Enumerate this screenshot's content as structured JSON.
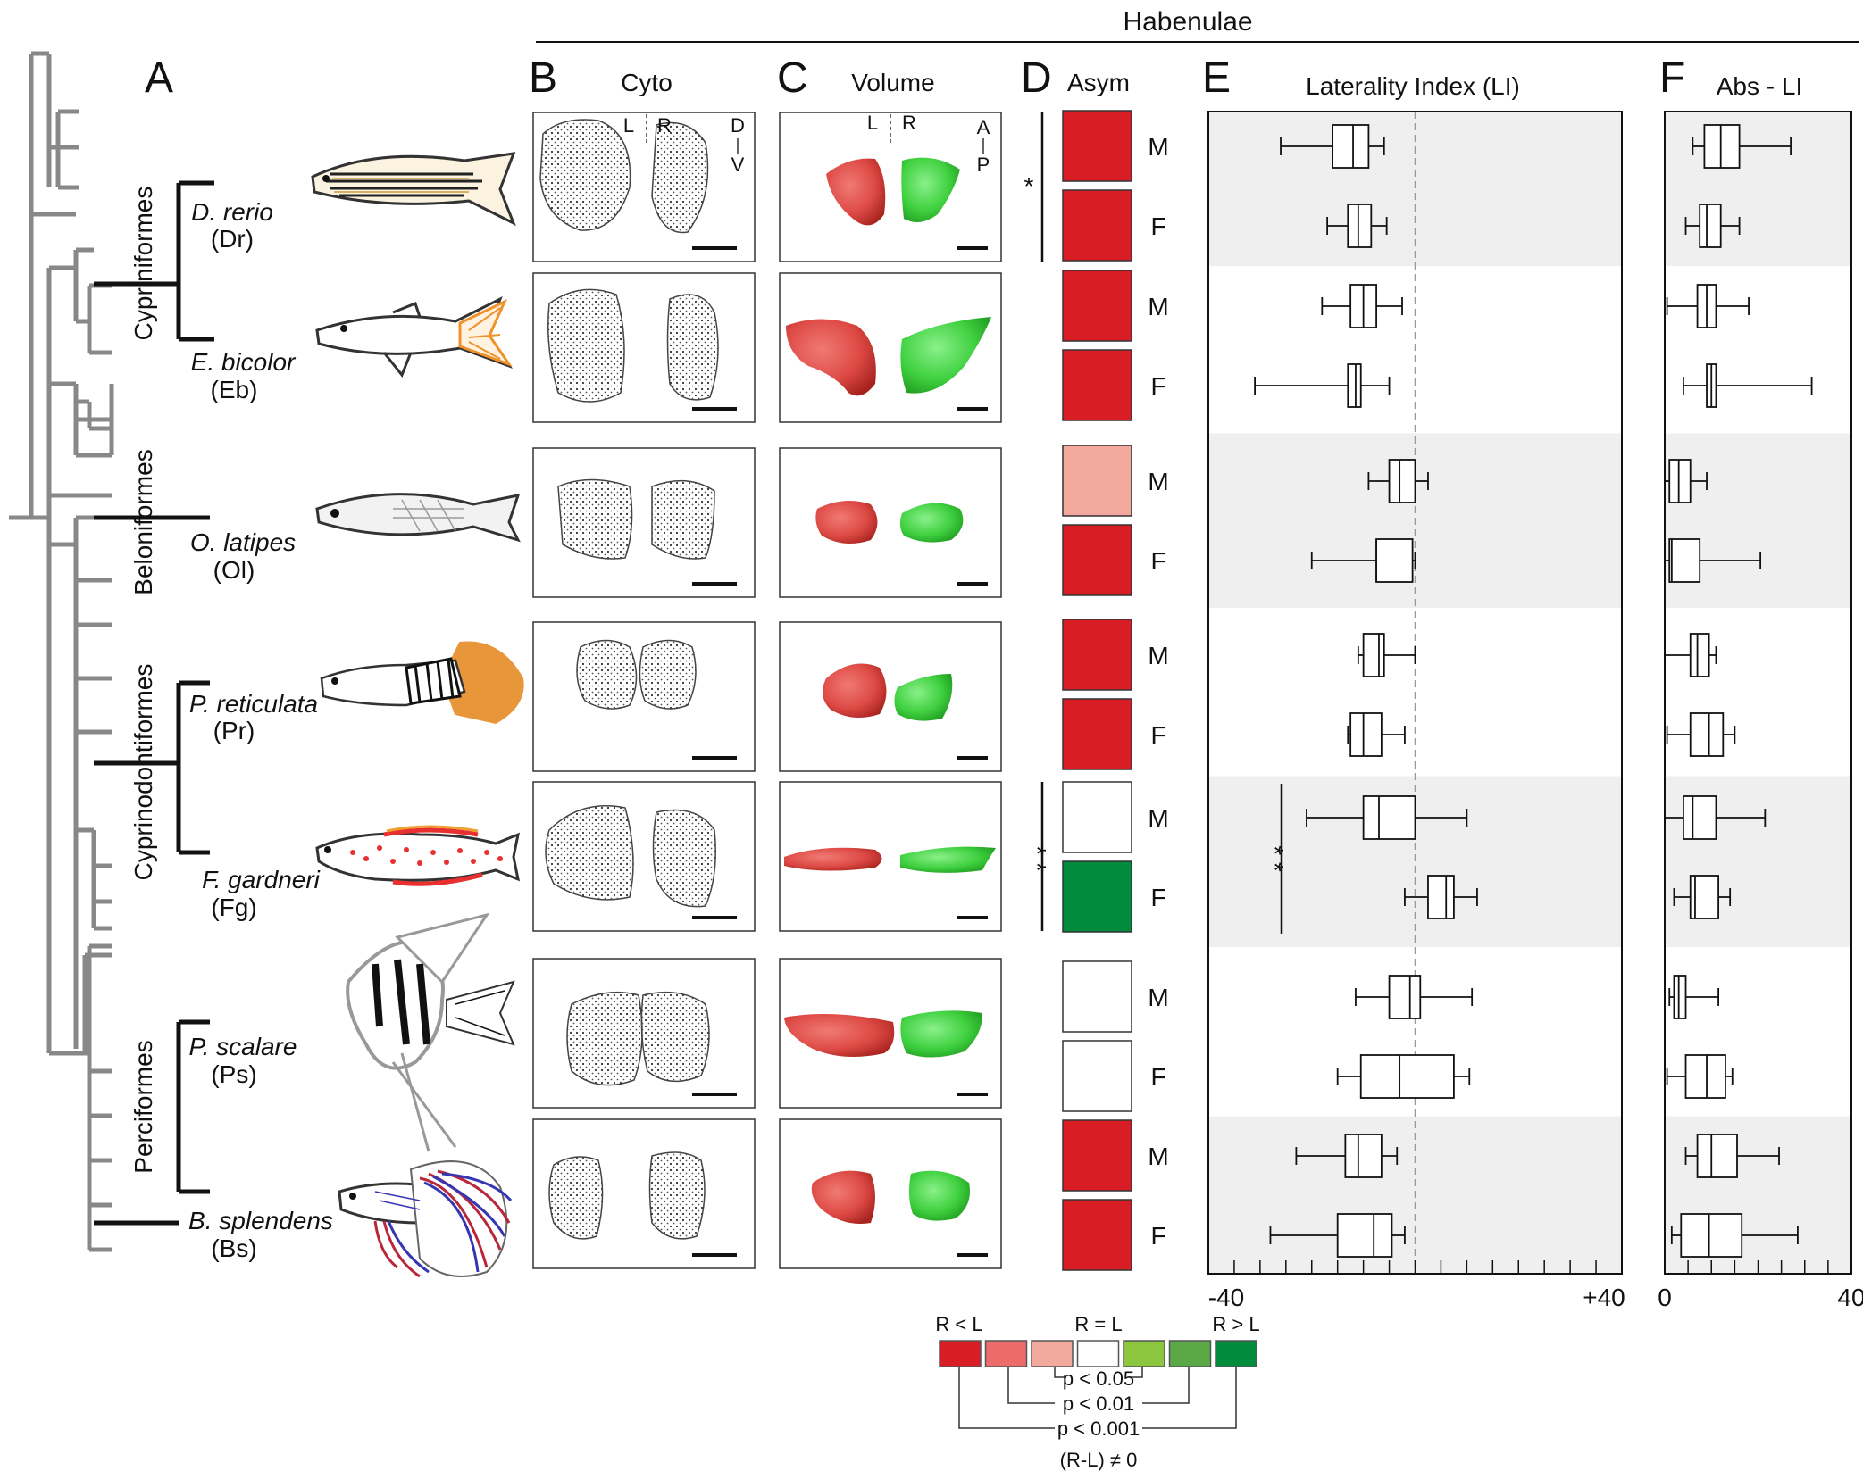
{
  "figure": {
    "header": "Habenulae",
    "panel_letters": [
      "A",
      "B",
      "C",
      "D",
      "E",
      "F"
    ],
    "panel_titles": {
      "B": "Cyto",
      "C": "Volume",
      "D": "Asym",
      "E": "Laterality Index (LI)",
      "F": "Abs - LI"
    },
    "orientation": {
      "left": "L",
      "right": "R",
      "dorsal": "D",
      "ventral": "V",
      "anterior": "A",
      "posterior": "P"
    },
    "orders": [
      "Cypriniformes",
      "Beloniformes",
      "Cyprinodontiformes",
      "Perciformes"
    ],
    "species": [
      {
        "name": "D. rerio",
        "abbr": "(Dr)",
        "asym": [
          "#d81e24",
          "#d81e24"
        ]
      },
      {
        "name": "E. bicolor",
        "abbr": "(Eb)",
        "asym": [
          "#d81e24",
          "#d81e24"
        ]
      },
      {
        "name": "O. latipes",
        "abbr": "(Ol)",
        "asym": [
          "#f4a99e",
          "#d81e24"
        ]
      },
      {
        "name": "P. reticulata",
        "abbr": "(Pr)",
        "asym": [
          "#d81e24",
          "#d81e24"
        ]
      },
      {
        "name": "F. gardneri",
        "abbr": "(Fg)",
        "asym": [
          "#ffffff",
          "#008c3c"
        ]
      },
      {
        "name": "P. scalare",
        "abbr": "(Ps)",
        "asym": [
          "#ffffff",
          "#ffffff"
        ]
      },
      {
        "name": "B. splendens",
        "abbr": "(Bs)",
        "asym": [
          "#d81e24",
          "#d81e24"
        ]
      }
    ],
    "sexes": [
      "M",
      "F"
    ],
    "significance_marks": {
      "asym_dr": "*",
      "asym_fg": "* *",
      "li_fg": "* *"
    },
    "legend": {
      "labels": [
        "R < L",
        "R = L",
        "R > L"
      ],
      "colors": [
        "#d81e24",
        "#ee6b6b",
        "#f4a99e",
        "#ffffff",
        "#8cc63f",
        "#5aa846",
        "#008c3c"
      ],
      "thresholds": [
        "p < 0.05",
        "p < 0.01",
        "p < 0.001"
      ],
      "condition": "(R-L) ≠ 0"
    }
  },
  "chart_data": [
    {
      "type": "box",
      "title": "Laterality Index (LI)",
      "xlim": [
        -40,
        40
      ],
      "x_tick_labels": [
        "-40",
        "+40"
      ],
      "reference_line": 0,
      "groups": [
        "Dr M",
        "Dr F",
        "Eb M",
        "Eb F",
        "Ol M",
        "Ol F",
        "Pr M",
        "Pr F",
        "Fg M",
        "Fg F",
        "Ps M",
        "Ps F",
        "Bs M",
        "Bs F"
      ],
      "boxes": [
        {
          "min": -26,
          "q1": -16,
          "median": -12,
          "q3": -9,
          "max": -6
        },
        {
          "min": -17,
          "q1": -13,
          "median": -11,
          "q3": -8.5,
          "max": -5.5
        },
        {
          "min": -18,
          "q1": -12.5,
          "median": -10,
          "q3": -7.5,
          "max": -2.5
        },
        {
          "min": -31,
          "q1": -13,
          "median": -11.5,
          "q3": -10.5,
          "max": -5
        },
        {
          "min": -9,
          "q1": -5,
          "median": -3,
          "q3": 0,
          "max": 2.5
        },
        {
          "min": -20,
          "q1": -7.5,
          "median": -7.5,
          "q3": -0.5,
          "max": 0
        },
        {
          "min": -11,
          "q1": -10,
          "median": -7,
          "q3": -6,
          "max": 0
        },
        {
          "min": -13,
          "q1": -12.5,
          "median": -10,
          "q3": -6.5,
          "max": -2
        },
        {
          "min": -21,
          "q1": -10,
          "median": -7,
          "q3": 0,
          "max": 10
        },
        {
          "min": -2,
          "q1": 2.5,
          "median": 6,
          "q3": 7.5,
          "max": 12
        },
        {
          "min": -11.5,
          "q1": -5,
          "median": -1,
          "q3": 1,
          "max": 11
        },
        {
          "min": -15,
          "q1": -10.5,
          "median": -3,
          "q3": 7.5,
          "max": 10.5
        },
        {
          "min": -23,
          "q1": -13.5,
          "median": -11,
          "q3": -6.5,
          "max": -3.5
        },
        {
          "min": -28,
          "q1": -15,
          "median": -8,
          "q3": -4.5,
          "max": -2
        }
      ]
    },
    {
      "type": "box",
      "title": "Abs - LI",
      "xlim": [
        0,
        40
      ],
      "x_tick_labels": [
        "0",
        "40"
      ],
      "groups": [
        "Dr M",
        "Dr F",
        "Eb M",
        "Eb F",
        "Ol M",
        "Ol F",
        "Pr M",
        "Pr F",
        "Fg M",
        "Fg F",
        "Ps M",
        "Ps F",
        "Bs M",
        "Bs F"
      ],
      "boxes": [
        {
          "min": 6,
          "q1": 8.5,
          "median": 12,
          "q3": 16,
          "max": 27
        },
        {
          "min": 4.5,
          "q1": 7.5,
          "median": 9,
          "q3": 12,
          "max": 16
        },
        {
          "min": 0.5,
          "q1": 7,
          "median": 9,
          "q3": 11,
          "max": 18
        },
        {
          "min": 4,
          "q1": 9,
          "median": 10,
          "q3": 11,
          "max": 31.5
        },
        {
          "min": 0,
          "q1": 1,
          "median": 3,
          "q3": 5.5,
          "max": 9
        },
        {
          "min": 0,
          "q1": 1,
          "median": 1.5,
          "q3": 7.5,
          "max": 20.5
        },
        {
          "min": 0,
          "q1": 5.5,
          "median": 7,
          "q3": 9.5,
          "max": 11
        },
        {
          "min": 0.5,
          "q1": 5.5,
          "median": 9.5,
          "q3": 12.5,
          "max": 15
        },
        {
          "min": 0,
          "q1": 4,
          "median": 6,
          "q3": 11,
          "max": 21.5
        },
        {
          "min": 2,
          "q1": 5.5,
          "median": 6.5,
          "q3": 11.5,
          "max": 14
        },
        {
          "min": 1,
          "q1": 2,
          "median": 3,
          "q3": 4.5,
          "max": 11.5
        },
        {
          "min": 0.5,
          "q1": 4.5,
          "median": 9,
          "q3": 13,
          "max": 14.5
        },
        {
          "min": 4.5,
          "q1": 7,
          "median": 10,
          "q3": 15.5,
          "max": 24.5
        },
        {
          "min": 1.5,
          "q1": 3.5,
          "median": 9.5,
          "q3": 16.5,
          "max": 28.5
        }
      ]
    }
  ]
}
